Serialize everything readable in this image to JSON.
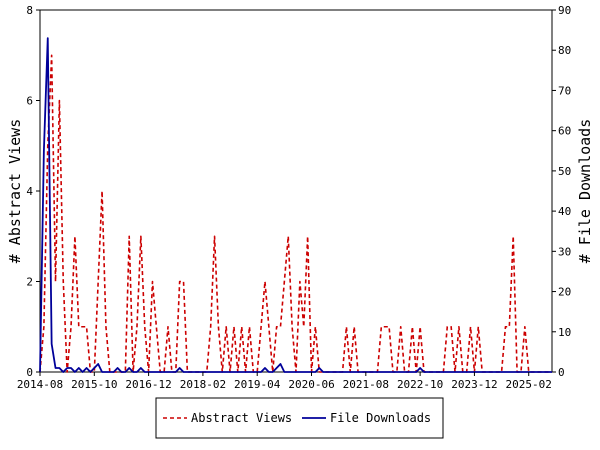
{
  "colors": {
    "abstract_views": "#cc0000",
    "file_downloads": "#000099",
    "axis": "#000000",
    "background": "#ffffff"
  },
  "chart_data": {
    "type": "line",
    "title": "",
    "xlabel": "",
    "ylabel_left": "# Abstract Views",
    "ylabel_right": "# File Downloads",
    "x_unit": "month",
    "x_range": [
      "2014-08",
      "2025-08"
    ],
    "x_tick_labels": [
      "2014-08",
      "2015-10",
      "2016-12",
      "2018-02",
      "2019-04",
      "2020-06",
      "2021-08",
      "2022-10",
      "2023-12",
      "2025-02"
    ],
    "y_left": {
      "range": [
        0,
        8
      ],
      "ticks": [
        "0",
        "2",
        "4",
        "6",
        "8"
      ]
    },
    "y_right": {
      "range": [
        0,
        90
      ],
      "ticks": [
        "0",
        "10",
        "20",
        "30",
        "40",
        "50",
        "60",
        "70",
        "80",
        "90"
      ]
    },
    "grid": false,
    "legend_position": "bottom-center",
    "series": [
      {
        "name": "Abstract Views",
        "axis": "left",
        "style": "dashed",
        "color": "#cc0000",
        "points": [
          [
            "2014-08",
            0
          ],
          [
            "2014-09",
            1
          ],
          [
            "2014-10",
            5
          ],
          [
            "2014-11",
            7
          ],
          [
            "2014-12",
            2
          ],
          [
            "2015-01",
            6
          ],
          [
            "2015-02",
            2
          ],
          [
            "2015-03",
            0
          ],
          [
            "2015-04",
            1
          ],
          [
            "2015-05",
            3
          ],
          [
            "2015-06",
            1
          ],
          [
            "2015-07",
            1
          ],
          [
            "2015-08",
            1
          ],
          [
            "2015-09",
            0
          ],
          [
            "2015-10",
            0
          ],
          [
            "2015-11",
            2
          ],
          [
            "2015-12",
            4
          ],
          [
            "2016-01",
            1
          ],
          [
            "2016-02",
            0
          ],
          [
            "2016-03",
            0
          ],
          [
            "2016-04",
            0
          ],
          [
            "2016-05",
            0
          ],
          [
            "2016-06",
            0
          ],
          [
            "2016-07",
            3
          ],
          [
            "2016-08",
            0
          ],
          [
            "2016-09",
            1
          ],
          [
            "2016-10",
            3
          ],
          [
            "2016-11",
            1
          ],
          [
            "2016-12",
            0
          ],
          [
            "2017-01",
            2
          ],
          [
            "2017-02",
            1
          ],
          [
            "2017-03",
            0
          ],
          [
            "2017-04",
            0
          ],
          [
            "2017-05",
            1
          ],
          [
            "2017-06",
            0
          ],
          [
            "2017-07",
            0
          ],
          [
            "2017-08",
            2
          ],
          [
            "2017-09",
            2
          ],
          [
            "2017-10",
            0
          ],
          [
            "2017-11",
            0
          ],
          [
            "2017-12",
            0
          ],
          [
            "2018-01",
            0
          ],
          [
            "2018-02",
            0
          ],
          [
            "2018-03",
            0
          ],
          [
            "2018-04",
            1
          ],
          [
            "2018-05",
            3
          ],
          [
            "2018-06",
            1
          ],
          [
            "2018-07",
            0
          ],
          [
            "2018-08",
            1
          ],
          [
            "2018-09",
            0
          ],
          [
            "2018-10",
            1
          ],
          [
            "2018-11",
            0
          ],
          [
            "2018-12",
            1
          ],
          [
            "2019-01",
            0
          ],
          [
            "2019-02",
            1
          ],
          [
            "2019-03",
            0
          ],
          [
            "2019-04",
            0
          ],
          [
            "2019-05",
            1
          ],
          [
            "2019-06",
            2
          ],
          [
            "2019-07",
            1
          ],
          [
            "2019-08",
            0
          ],
          [
            "2019-09",
            1
          ],
          [
            "2019-10",
            1
          ],
          [
            "2019-11",
            2
          ],
          [
            "2019-12",
            3
          ],
          [
            "2020-01",
            1
          ],
          [
            "2020-02",
            0
          ],
          [
            "2020-03",
            2
          ],
          [
            "2020-04",
            1
          ],
          [
            "2020-05",
            3
          ],
          [
            "2020-06",
            0
          ],
          [
            "2020-07",
            1
          ],
          [
            "2020-08",
            0
          ],
          [
            "2020-09",
            0
          ],
          [
            "2020-10",
            0
          ],
          [
            "2020-11",
            0
          ],
          [
            "2020-12",
            0
          ],
          [
            "2021-01",
            0
          ],
          [
            "2021-02",
            0
          ],
          [
            "2021-03",
            1
          ],
          [
            "2021-04",
            0
          ],
          [
            "2021-05",
            1
          ],
          [
            "2021-06",
            0
          ],
          [
            "2021-07",
            0
          ],
          [
            "2021-08",
            0
          ],
          [
            "2021-09",
            0
          ],
          [
            "2021-10",
            0
          ],
          [
            "2021-11",
            0
          ],
          [
            "2021-12",
            1
          ],
          [
            "2022-01",
            1
          ],
          [
            "2022-02",
            1
          ],
          [
            "2022-03",
            0
          ],
          [
            "2022-04",
            0
          ],
          [
            "2022-05",
            1
          ],
          [
            "2022-06",
            0
          ],
          [
            "2022-07",
            0
          ],
          [
            "2022-08",
            1
          ],
          [
            "2022-09",
            0
          ],
          [
            "2022-10",
            1
          ],
          [
            "2022-11",
            0
          ],
          [
            "2022-12",
            0
          ],
          [
            "2023-01",
            0
          ],
          [
            "2023-02",
            0
          ],
          [
            "2023-03",
            0
          ],
          [
            "2023-04",
            0
          ],
          [
            "2023-05",
            1
          ],
          [
            "2023-06",
            1
          ],
          [
            "2023-07",
            0
          ],
          [
            "2023-08",
            1
          ],
          [
            "2023-09",
            0
          ],
          [
            "2023-10",
            0
          ],
          [
            "2023-11",
            1
          ],
          [
            "2023-12",
            0
          ],
          [
            "2024-01",
            1
          ],
          [
            "2024-02",
            0
          ],
          [
            "2024-03",
            0
          ],
          [
            "2024-04",
            0
          ],
          [
            "2024-05",
            0
          ],
          [
            "2024-06",
            0
          ],
          [
            "2024-07",
            0
          ],
          [
            "2024-08",
            1
          ],
          [
            "2024-09",
            1
          ],
          [
            "2024-10",
            3
          ],
          [
            "2024-11",
            0
          ],
          [
            "2024-12",
            0
          ],
          [
            "2025-01",
            1
          ],
          [
            "2025-02",
            0
          ],
          [
            "2025-03",
            0
          ],
          [
            "2025-04",
            0
          ],
          [
            "2025-05",
            0
          ],
          [
            "2025-06",
            0
          ],
          [
            "2025-07",
            0
          ],
          [
            "2025-08",
            0
          ]
        ]
      },
      {
        "name": "File Downloads",
        "axis": "right",
        "style": "solid",
        "color": "#000099",
        "points": [
          [
            "2014-08",
            0
          ],
          [
            "2014-09",
            55
          ],
          [
            "2014-10",
            83
          ],
          [
            "2014-11",
            7
          ],
          [
            "2014-12",
            1
          ],
          [
            "2015-01",
            1
          ],
          [
            "2015-02",
            0
          ],
          [
            "2015-03",
            1
          ],
          [
            "2015-04",
            1
          ],
          [
            "2015-05",
            0
          ],
          [
            "2015-06",
            1
          ],
          [
            "2015-07",
            0
          ],
          [
            "2015-08",
            1
          ],
          [
            "2015-09",
            0
          ],
          [
            "2015-10",
            1
          ],
          [
            "2015-11",
            2
          ],
          [
            "2015-12",
            0
          ],
          [
            "2016-01",
            0
          ],
          [
            "2016-02",
            0
          ],
          [
            "2016-03",
            0
          ],
          [
            "2016-04",
            1
          ],
          [
            "2016-05",
            0
          ],
          [
            "2016-06",
            0
          ],
          [
            "2016-07",
            1
          ],
          [
            "2016-08",
            0
          ],
          [
            "2016-09",
            0
          ],
          [
            "2016-10",
            1
          ],
          [
            "2016-11",
            0
          ],
          [
            "2016-12",
            0
          ],
          [
            "2017-01",
            0
          ],
          [
            "2017-02",
            0
          ],
          [
            "2017-03",
            0
          ],
          [
            "2017-04",
            0
          ],
          [
            "2017-05",
            0
          ],
          [
            "2017-06",
            0
          ],
          [
            "2017-07",
            0
          ],
          [
            "2017-08",
            1
          ],
          [
            "2017-09",
            0
          ],
          [
            "2017-10",
            0
          ],
          [
            "2017-11",
            0
          ],
          [
            "2017-12",
            0
          ],
          [
            "2018-01",
            0
          ],
          [
            "2018-02",
            0
          ],
          [
            "2018-03",
            0
          ],
          [
            "2018-04",
            0
          ],
          [
            "2018-05",
            0
          ],
          [
            "2018-06",
            0
          ],
          [
            "2018-07",
            0
          ],
          [
            "2018-08",
            0
          ],
          [
            "2018-09",
            0
          ],
          [
            "2018-10",
            0
          ],
          [
            "2018-11",
            0
          ],
          [
            "2018-12",
            0
          ],
          [
            "2019-01",
            0
          ],
          [
            "2019-02",
            0
          ],
          [
            "2019-03",
            0
          ],
          [
            "2019-04",
            0
          ],
          [
            "2019-05",
            0
          ],
          [
            "2019-06",
            1
          ],
          [
            "2019-07",
            0
          ],
          [
            "2019-08",
            0
          ],
          [
            "2019-09",
            1
          ],
          [
            "2019-10",
            2
          ],
          [
            "2019-11",
            0
          ],
          [
            "2019-12",
            0
          ],
          [
            "2020-01",
            0
          ],
          [
            "2020-02",
            0
          ],
          [
            "2020-03",
            0
          ],
          [
            "2020-04",
            0
          ],
          [
            "2020-05",
            0
          ],
          [
            "2020-06",
            0
          ],
          [
            "2020-07",
            0
          ],
          [
            "2020-08",
            1
          ],
          [
            "2020-09",
            0
          ],
          [
            "2020-10",
            0
          ],
          [
            "2020-11",
            0
          ],
          [
            "2020-12",
            0
          ],
          [
            "2021-01",
            0
          ],
          [
            "2021-02",
            0
          ],
          [
            "2021-03",
            0
          ],
          [
            "2021-04",
            0
          ],
          [
            "2021-05",
            0
          ],
          [
            "2021-06",
            0
          ],
          [
            "2021-07",
            0
          ],
          [
            "2021-08",
            0
          ],
          [
            "2021-09",
            0
          ],
          [
            "2021-10",
            0
          ],
          [
            "2021-11",
            0
          ],
          [
            "2021-12",
            0
          ],
          [
            "2022-01",
            0
          ],
          [
            "2022-02",
            0
          ],
          [
            "2022-03",
            0
          ],
          [
            "2022-04",
            0
          ],
          [
            "2022-05",
            0
          ],
          [
            "2022-06",
            0
          ],
          [
            "2022-07",
            0
          ],
          [
            "2022-08",
            0
          ],
          [
            "2022-09",
            0
          ],
          [
            "2022-10",
            1
          ],
          [
            "2022-11",
            0
          ],
          [
            "2022-12",
            0
          ],
          [
            "2023-01",
            0
          ],
          [
            "2023-02",
            0
          ],
          [
            "2023-03",
            0
          ],
          [
            "2023-04",
            0
          ],
          [
            "2023-05",
            0
          ],
          [
            "2023-06",
            0
          ],
          [
            "2023-07",
            0
          ],
          [
            "2023-08",
            0
          ],
          [
            "2023-09",
            0
          ],
          [
            "2023-10",
            0
          ],
          [
            "2023-11",
            0
          ],
          [
            "2023-12",
            0
          ],
          [
            "2024-01",
            0
          ],
          [
            "2024-02",
            0
          ],
          [
            "2024-03",
            0
          ],
          [
            "2024-04",
            0
          ],
          [
            "2024-05",
            0
          ],
          [
            "2024-06",
            0
          ],
          [
            "2024-07",
            0
          ],
          [
            "2024-08",
            0
          ],
          [
            "2024-09",
            0
          ],
          [
            "2024-10",
            0
          ],
          [
            "2024-11",
            0
          ],
          [
            "2024-12",
            0
          ],
          [
            "2025-01",
            0
          ],
          [
            "2025-02",
            0
          ],
          [
            "2025-03",
            0
          ],
          [
            "2025-04",
            0
          ],
          [
            "2025-05",
            0
          ],
          [
            "2025-06",
            0
          ],
          [
            "2025-07",
            0
          ],
          [
            "2025-08",
            0
          ]
        ]
      }
    ]
  }
}
